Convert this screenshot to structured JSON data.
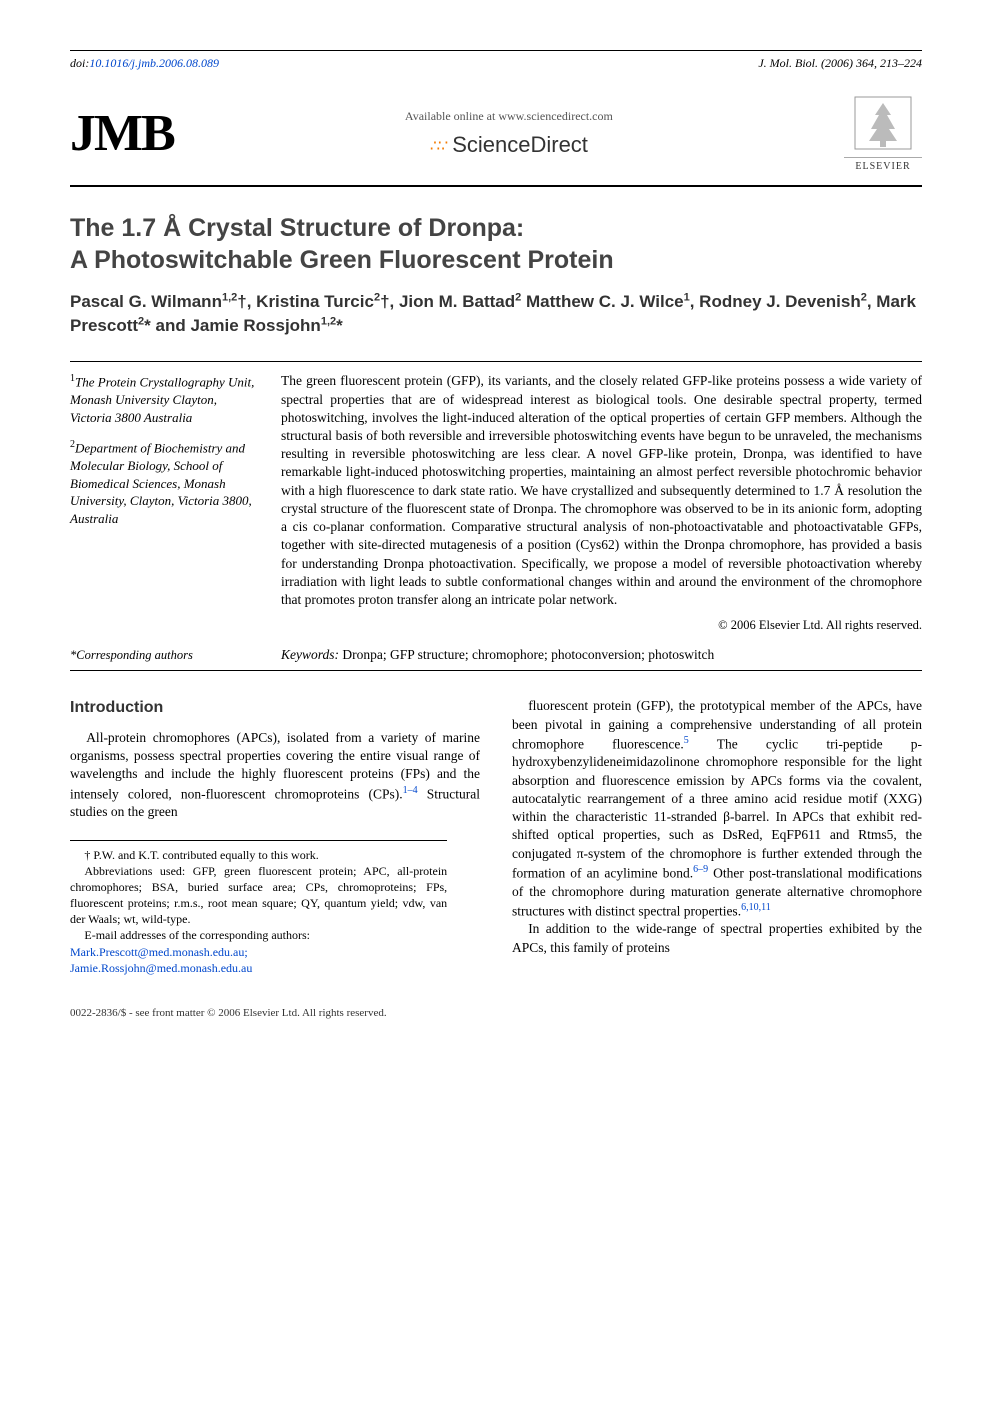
{
  "header": {
    "doi_prefix": "doi:",
    "doi": "10.1016/j.jmb.2006.08.089",
    "journal_ref": "J. Mol. Biol. (2006) 364, 213–224",
    "jmb_logo_text": "JMB",
    "available_online": "Available online at www.sciencedirect.com",
    "sciencedirect": "ScienceDirect",
    "elsevier": "ELSEVIER"
  },
  "title_line1": "The 1.7 Å Crystal Structure of Dronpa:",
  "title_line2": "A Photoswitchable Green Fluorescent Protein",
  "authors_html": "Pascal G. Wilmann<sup>1,2</sup>†, Kristina Turcic<sup>2</sup>†, Jion M. Battad<sup>2</sup> Matthew C. J. Wilce<sup>1</sup>, Rodney J. Devenish<sup>2</sup>, Mark Prescott<sup>2</sup>* and Jamie Rossjohn<sup>1,2</sup>*",
  "affiliations": {
    "a1_sup": "1",
    "a1": "The Protein Crystallography Unit, Monash University Clayton, Victoria 3800 Australia",
    "a2_sup": "2",
    "a2": "Department of Biochemistry and Molecular Biology, School of Biomedical Sciences, Monash University, Clayton, Victoria 3800, Australia"
  },
  "abstract": "The green fluorescent protein (GFP), its variants, and the closely related GFP-like proteins possess a wide variety of spectral properties that are of widespread interest as biological tools. One desirable spectral property, termed photoswitching, involves the light-induced alteration of the optical properties of certain GFP members. Although the structural basis of both reversible and irreversible photoswitching events have begun to be unraveled, the mechanisms resulting in reversible photoswitching are less clear. A novel GFP-like protein, Dronpa, was identified to have remarkable light-induced photoswitching properties, maintaining an almost perfect reversible photochromic behavior with a high fluorescence to dark state ratio. We have crystallized and subsequently determined to 1.7 Å resolution the crystal structure of the fluorescent state of Dronpa. The chromophore was observed to be in its anionic form, adopting a cis co-planar conformation. Comparative structural analysis of non-photoactivatable and photoactivatable GFPs, together with site-directed mutagenesis of a position (Cys62) within the Dronpa chromophore, has provided a basis for understanding Dronpa photoactivation. Specifically, we propose a model of reversible photoactivation whereby irradiation with light leads to subtle conformational changes within and around the environment of the chromophore that promotes proton transfer along an intricate polar network.",
  "copyright": "© 2006 Elsevier Ltd. All rights reserved.",
  "keywords_label": "Keywords:",
  "keywords": " Dronpa; GFP structure; chromophore; photoconversion; photoswitch",
  "corresponding": "*Corresponding authors",
  "section_intro": "Introduction",
  "intro_col1": "All-protein chromophores (APCs), isolated from a variety of marine organisms, possess spectral properties covering the entire visual range of wavelengths and include the highly fluorescent proteins (FPs) and the intensely colored, non-fluorescent chromoproteins (CPs).",
  "intro_col1_refs": "1–4",
  "intro_col1_tail": " Structural studies on the green",
  "intro_col2_p1_a": "fluorescent protein (GFP), the prototypical member of the APCs, have been pivotal in gaining a comprehensive understanding of all protein chromophore fluorescence.",
  "intro_col2_ref5": "5",
  "intro_col2_p1_b": " The cyclic tri-peptide p-hydroxybenzylideneimidazolinone chromophore responsible for the light absorption and fluorescence emission by APCs forms via the covalent, autocatalytic rearrangement of a three amino acid residue motif (XXG) within the characteristic 11-stranded β-barrel. In APCs that exhibit red-shifted optical properties, such as DsRed, EqFP611 and Rtms5, the conjugated π-system of the chromophore is further extended through the formation of an acylimine bond.",
  "intro_col2_ref69": "6–9",
  "intro_col2_p1_c": " Other post-translational modifications of the chromophore during maturation generate alternative chromophore structures with distinct spectral properties.",
  "intro_col2_ref1011": "6,10,11",
  "intro_col2_p2": "In addition to the wide-range of spectral properties exhibited by the APCs, this family of proteins",
  "footnotes": {
    "equal": "† P.W. and K.T. contributed equally to this work.",
    "abbrev": "Abbreviations used: GFP, green fluorescent protein; APC, all-protein chromophores; BSA, buried surface area; CPs, chromoproteins; FPs, fluorescent proteins; r.m.s., root mean square; QY, quantum yield; vdw, van der Waals; wt, wild-type.",
    "email_label": "E-mail addresses of the corresponding authors:",
    "email1": "Mark.Prescott@med.monash.edu.au;",
    "email2": "Jamie.Rossjohn@med.monash.edu.au"
  },
  "footer": "0022-2836/$ - see front matter © 2006 Elsevier Ltd. All rights reserved.",
  "colors": {
    "link": "#0047cc",
    "heading": "#444444",
    "sd_orange": "#f47a00"
  }
}
